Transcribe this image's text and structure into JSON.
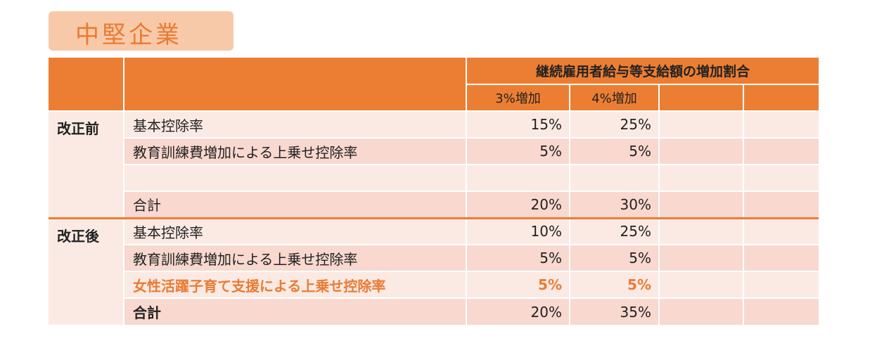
{
  "title": "中堅企業",
  "table": {
    "header_span": "継続雇用者給与等支給額の増加割合",
    "col_3": "3%増加",
    "col_4": "4%増加",
    "before": {
      "group": "改正前",
      "rows": [
        {
          "label": "基本控除率",
          "v3": "15%",
          "v4": "25%"
        },
        {
          "label": "教育訓練費増加による上乗せ控除率",
          "v3": "5%",
          "v4": "5%"
        },
        {
          "label": "",
          "v3": "",
          "v4": ""
        },
        {
          "label": "合計",
          "v3": "20%",
          "v4": "30%"
        }
      ]
    },
    "after": {
      "group": "改正後",
      "rows": [
        {
          "label": "基本控除率",
          "v3": "10%",
          "v4": "25%"
        },
        {
          "label": "教育訓練費増加による上乗せ控除率",
          "v3": "5%",
          "v4": "5%"
        },
        {
          "label": "女性活躍子育て支援による上乗せ控除率",
          "v3": "5%",
          "v4": "5%"
        },
        {
          "label": "合計",
          "v3": "20%",
          "v4": "35%"
        }
      ]
    }
  },
  "colors": {
    "accent": "#ec7e33",
    "title_bg": "#f8c9a8",
    "row_dark": "#f8d8cf",
    "row_light": "#fbeae4"
  }
}
